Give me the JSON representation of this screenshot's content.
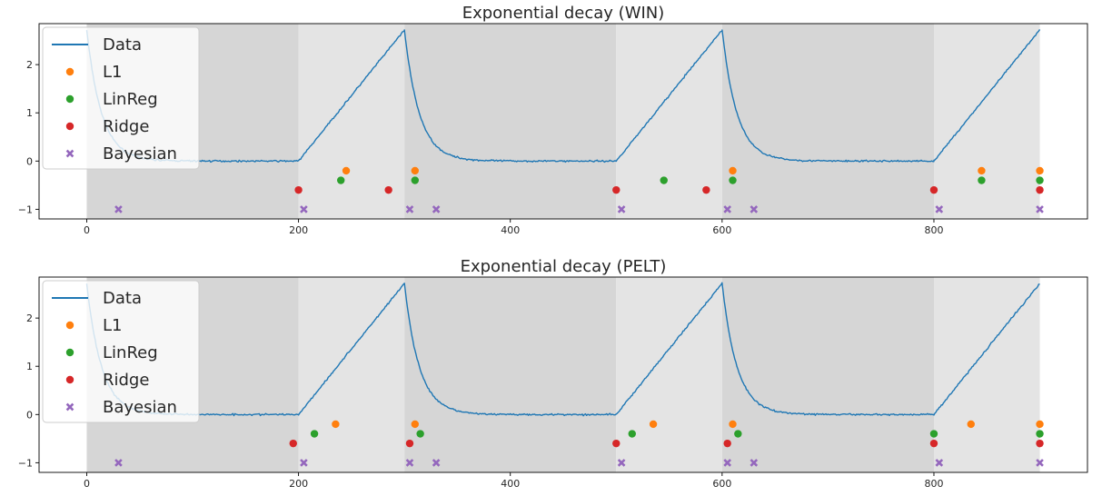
{
  "chart_data": [
    {
      "type": "line",
      "title": "Exponential decay (WIN)",
      "xlabel": "",
      "ylabel": "",
      "xlim": [
        -45,
        945
      ],
      "ylim": [
        -1.2,
        2.85
      ],
      "xticks": [
        0,
        200,
        400,
        600,
        800
      ],
      "yticks": [
        -1,
        0,
        1,
        2
      ],
      "grid": false,
      "legend": "top-left",
      "regions": [
        {
          "start": 0,
          "end": 200,
          "shade": "dark"
        },
        {
          "start": 200,
          "end": 300,
          "shade": "light"
        },
        {
          "start": 300,
          "end": 500,
          "shade": "dark"
        },
        {
          "start": 500,
          "end": 600,
          "shade": "light"
        },
        {
          "start": 600,
          "end": 800,
          "shade": "dark"
        },
        {
          "start": 800,
          "end": 900,
          "shade": "light"
        }
      ],
      "series": [
        {
          "name": "Data",
          "kind": "line",
          "color": "#1f77b4",
          "segments": [
            {
              "type": "decay",
              "start": 0,
              "end": 200,
              "from": 2.72
            },
            {
              "type": "ramp",
              "start": 200,
              "end": 300,
              "from": 0,
              "to": 2.72
            },
            {
              "type": "decay",
              "start": 300,
              "end": 500,
              "from": 2.72
            },
            {
              "type": "ramp",
              "start": 500,
              "end": 600,
              "from": 0,
              "to": 2.72
            },
            {
              "type": "decay",
              "start": 600,
              "end": 800,
              "from": 2.72
            },
            {
              "type": "ramp",
              "start": 800,
              "end": 900,
              "from": 0,
              "to": 2.72
            }
          ]
        },
        {
          "name": "L1",
          "kind": "dot",
          "color": "#ff7f0e",
          "y": -0.2,
          "x": [
            245,
            310,
            610,
            845,
            900
          ]
        },
        {
          "name": "LinReg",
          "kind": "dot",
          "color": "#2ca02c",
          "y": -0.4,
          "x": [
            240,
            310,
            545,
            610,
            845,
            900
          ]
        },
        {
          "name": "Ridge",
          "kind": "dot",
          "color": "#d62728",
          "y": -0.6,
          "x": [
            200,
            285,
            500,
            585,
            800,
            900
          ]
        },
        {
          "name": "Bayesian",
          "kind": "x",
          "color": "#9467bd",
          "y": -1.0,
          "x": [
            30,
            205,
            305,
            330,
            505,
            605,
            630,
            805,
            900
          ]
        }
      ]
    },
    {
      "type": "line",
      "title": "Exponential decay (PELT)",
      "xlabel": "",
      "ylabel": "",
      "xlim": [
        -45,
        945
      ],
      "ylim": [
        -1.2,
        2.85
      ],
      "xticks": [
        0,
        200,
        400,
        600,
        800
      ],
      "yticks": [
        -1,
        0,
        1,
        2
      ],
      "grid": false,
      "legend": "top-left",
      "regions": [
        {
          "start": 0,
          "end": 200,
          "shade": "dark"
        },
        {
          "start": 200,
          "end": 300,
          "shade": "light"
        },
        {
          "start": 300,
          "end": 500,
          "shade": "dark"
        },
        {
          "start": 500,
          "end": 600,
          "shade": "light"
        },
        {
          "start": 600,
          "end": 800,
          "shade": "dark"
        },
        {
          "start": 800,
          "end": 900,
          "shade": "light"
        }
      ],
      "series": [
        {
          "name": "Data",
          "kind": "line",
          "color": "#1f77b4",
          "segments": [
            {
              "type": "decay",
              "start": 0,
              "end": 200,
              "from": 2.72
            },
            {
              "type": "ramp",
              "start": 200,
              "end": 300,
              "from": 0,
              "to": 2.72
            },
            {
              "type": "decay",
              "start": 300,
              "end": 500,
              "from": 2.72
            },
            {
              "type": "ramp",
              "start": 500,
              "end": 600,
              "from": 0,
              "to": 2.72
            },
            {
              "type": "decay",
              "start": 600,
              "end": 800,
              "from": 2.72
            },
            {
              "type": "ramp",
              "start": 800,
              "end": 900,
              "from": 0,
              "to": 2.72
            }
          ]
        },
        {
          "name": "L1",
          "kind": "dot",
          "color": "#ff7f0e",
          "y": -0.2,
          "x": [
            235,
            310,
            535,
            610,
            835,
            900
          ]
        },
        {
          "name": "LinReg",
          "kind": "dot",
          "color": "#2ca02c",
          "y": -0.4,
          "x": [
            215,
            315,
            515,
            615,
            800,
            900
          ]
        },
        {
          "name": "Ridge",
          "kind": "dot",
          "color": "#d62728",
          "y": -0.6,
          "x": [
            195,
            305,
            500,
            605,
            800,
            900
          ]
        },
        {
          "name": "Bayesian",
          "kind": "x",
          "color": "#9467bd",
          "y": -1.0,
          "x": [
            30,
            205,
            305,
            330,
            505,
            605,
            630,
            805,
            900
          ]
        }
      ]
    }
  ]
}
